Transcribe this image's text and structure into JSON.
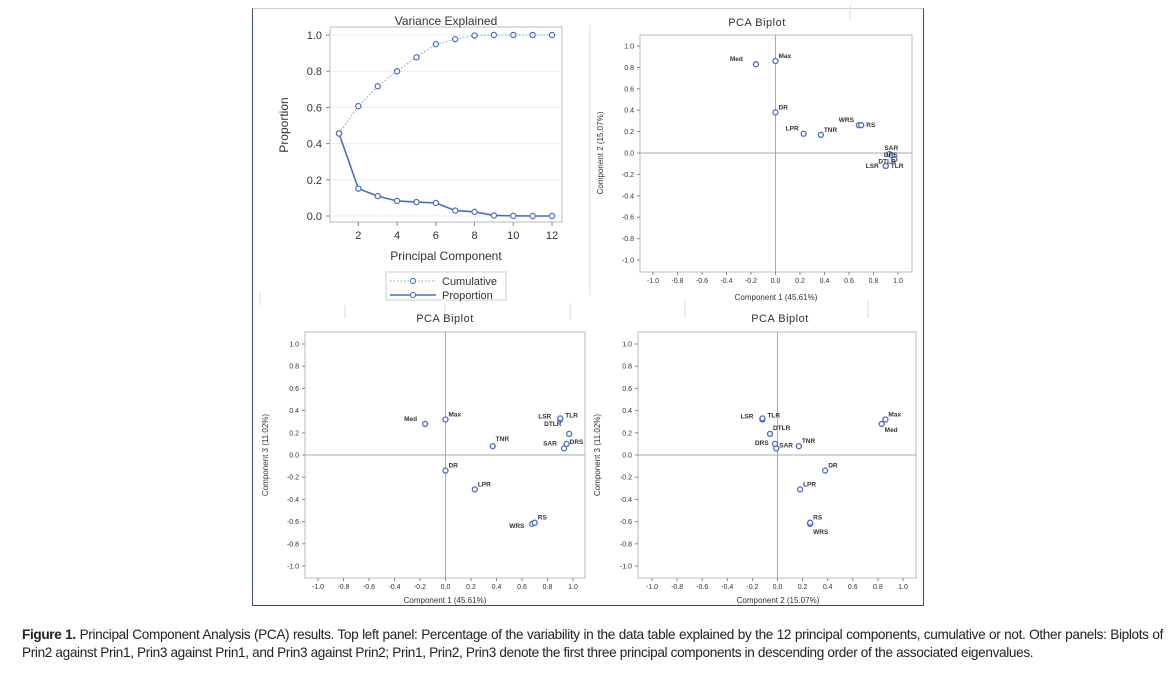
{
  "caption": {
    "label": "Figure 1.",
    "text": "Principal Component Analysis (PCA) results. Top left panel: Percentage of the variability in the data table explained by the 12 principal components, cumulative or not. Other panels: Biplots of Prin2 against Prin1, Prin3 against Prin1, and Prin3 against Prin2; Prin1, Prin2, Prin3 denote the first three principal components in descending order of the associated eigenvalues."
  },
  "chart_data": [
    {
      "type": "line",
      "title": "Variance Explained",
      "xlabel": "Principal Component",
      "ylabel": "Proportion",
      "x": [
        1,
        2,
        3,
        4,
        5,
        6,
        7,
        8,
        9,
        10,
        11,
        12
      ],
      "xticks": [
        2,
        4,
        6,
        8,
        10,
        12
      ],
      "yticks": [
        0.0,
        0.2,
        0.4,
        0.6,
        0.8,
        1.0
      ],
      "xlim": [
        1,
        12
      ],
      "ylim": [
        0,
        1
      ],
      "grid": true,
      "legend": "bottom",
      "series": [
        {
          "name": "Cumulative",
          "style": "dotted",
          "values": [
            0.456,
            0.607,
            0.717,
            0.8,
            0.877,
            0.949,
            0.977,
            0.997,
            1.0,
            1.0,
            1.0,
            1.0
          ]
        },
        {
          "name": "Proportion",
          "style": "solid",
          "values": [
            0.456,
            0.151,
            0.11,
            0.083,
            0.077,
            0.072,
            0.03,
            0.023,
            0.003,
            0.001,
            0.0,
            0.0
          ]
        }
      ],
      "color": "#4a6cc2"
    },
    {
      "type": "scatter",
      "title": "PCA Biplot",
      "xlabel": "Component 1 (45.61%)",
      "ylabel": "Component 2 (15.07%)",
      "xlim": [
        -1,
        1
      ],
      "ylim": [
        -1,
        1
      ],
      "ticks": [
        "-1.0",
        "-0.8",
        "-0.6",
        "-0.4",
        "-0.2",
        "0.0",
        "0.2",
        "0.4",
        "0.6",
        "0.8",
        "1.0"
      ],
      "points": [
        {
          "label": "Med",
          "x": -0.16,
          "y": 0.83
        },
        {
          "label": "Max",
          "x": 0.0,
          "y": 0.86
        },
        {
          "label": "DR",
          "x": 0.0,
          "y": 0.38
        },
        {
          "label": "LPR",
          "x": 0.23,
          "y": 0.18
        },
        {
          "label": "TNR",
          "x": 0.37,
          "y": 0.17
        },
        {
          "label": "WRS",
          "x": 0.68,
          "y": 0.26
        },
        {
          "label": "RS",
          "x": 0.7,
          "y": 0.26
        },
        {
          "label": "SAR",
          "x": 0.93,
          "y": -0.01
        },
        {
          "label": "DRS",
          "x": 0.95,
          "y": -0.02
        },
        {
          "label": "DTLR",
          "x": 0.97,
          "y": -0.06
        },
        {
          "label": "LSR",
          "x": 0.9,
          "y": -0.12
        },
        {
          "label": "TLR",
          "x": 0.9,
          "y": -0.12
        }
      ]
    },
    {
      "type": "scatter",
      "title": "PCA Biplot",
      "xlabel": "Component 1 (45.61%)",
      "ylabel": "Component 3 (11.02%)",
      "xlim": [
        -1,
        1
      ],
      "ylim": [
        -1,
        1
      ],
      "ticks": [
        "-1.0",
        "-0.8",
        "-0.6",
        "-0.4",
        "-0.2",
        "0.0",
        "0.2",
        "0.4",
        "0.6",
        "0.8",
        "1.0"
      ],
      "points": [
        {
          "label": "Med",
          "x": -0.16,
          "y": 0.28
        },
        {
          "label": "Max",
          "x": 0.0,
          "y": 0.32
        },
        {
          "label": "DR",
          "x": 0.0,
          "y": -0.14
        },
        {
          "label": "LPR",
          "x": 0.23,
          "y": -0.31
        },
        {
          "label": "TNR",
          "x": 0.37,
          "y": 0.08
        },
        {
          "label": "WRS",
          "x": 0.68,
          "y": -0.62
        },
        {
          "label": "RS",
          "x": 0.7,
          "y": -0.61
        },
        {
          "label": "SAR",
          "x": 0.93,
          "y": 0.06
        },
        {
          "label": "DRS",
          "x": 0.95,
          "y": 0.1
        },
        {
          "label": "DTLR",
          "x": 0.97,
          "y": 0.19
        },
        {
          "label": "LSR",
          "x": 0.9,
          "y": 0.32
        },
        {
          "label": "TLR",
          "x": 0.9,
          "y": 0.33
        }
      ]
    },
    {
      "type": "scatter",
      "title": "PCA Biplot",
      "xlabel": "Component 2 (15.07%)",
      "ylabel": "Component 3 (11.02%)",
      "xlim": [
        -1,
        1
      ],
      "ylim": [
        -1,
        1
      ],
      "ticks": [
        "-1.0",
        "-0.8",
        "-0.6",
        "-0.4",
        "-0.2",
        "0.0",
        "0.2",
        "0.4",
        "0.6",
        "0.8",
        "1.0"
      ],
      "points": [
        {
          "label": "Med",
          "x": 0.83,
          "y": 0.28
        },
        {
          "label": "Max",
          "x": 0.86,
          "y": 0.32
        },
        {
          "label": "DR",
          "x": 0.38,
          "y": -0.14
        },
        {
          "label": "LPR",
          "x": 0.18,
          "y": -0.31
        },
        {
          "label": "TNR",
          "x": 0.17,
          "y": 0.08
        },
        {
          "label": "WRS",
          "x": 0.26,
          "y": -0.62
        },
        {
          "label": "RS",
          "x": 0.26,
          "y": -0.61
        },
        {
          "label": "SAR",
          "x": -0.01,
          "y": 0.06
        },
        {
          "label": "DRS",
          "x": -0.02,
          "y": 0.1
        },
        {
          "label": "DTLR",
          "x": -0.06,
          "y": 0.19
        },
        {
          "label": "LSR",
          "x": -0.12,
          "y": 0.32
        },
        {
          "label": "TLR",
          "x": -0.12,
          "y": 0.33
        }
      ]
    }
  ]
}
